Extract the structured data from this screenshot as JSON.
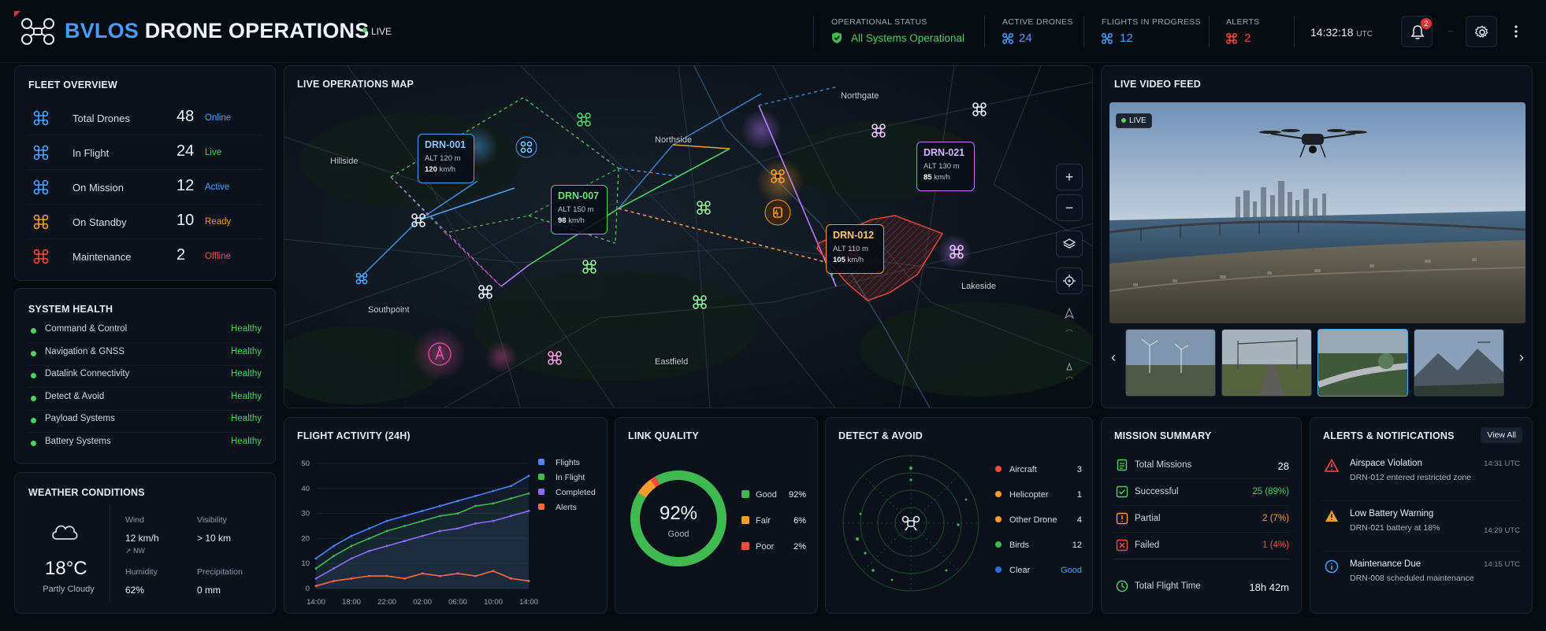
{
  "header": {
    "title_accent": "BVLOS",
    "title_rest": "DRONE OPERATIONS",
    "live_label": "LIVE",
    "op_status_label": "OPERATIONAL STATUS",
    "op_status_value": "All Systems Operational",
    "active_drones_label": "ACTIVE DRONES",
    "active_drones_value": "24",
    "flights_label": "FLIGHTS IN PROGRESS",
    "flights_value": "12",
    "alerts_label": "ALERTS",
    "alerts_value": "2",
    "time": "14:32:18",
    "time_zone": "UTC",
    "notification_count": "2"
  },
  "fleet": {
    "title": "FLEET OVERVIEW",
    "rows": [
      {
        "label": "Total Drones",
        "value": "48",
        "status": "Online",
        "color": "#4aa3ff"
      },
      {
        "label": "In Flight",
        "value": "24",
        "status": "Live",
        "color": "#4fd063"
      },
      {
        "label": "On Mission",
        "value": "12",
        "status": "Active",
        "color": "#4aa3ff"
      },
      {
        "label": "On Standby",
        "value": "10",
        "status": "Ready",
        "color": "#f59d2a"
      },
      {
        "label": "Maintenance",
        "value": "2",
        "status": "Offline",
        "color": "#ff4a3d"
      }
    ]
  },
  "health": {
    "title": "SYSTEM HEALTH",
    "rows": [
      {
        "label": "Command & Control",
        "status": "Healthy"
      },
      {
        "label": "Navigation & GNSS",
        "status": "Healthy"
      },
      {
        "label": "Datalink Connectivity",
        "status": "Healthy"
      },
      {
        "label": "Detect & Avoid",
        "status": "Healthy"
      },
      {
        "label": "Payload Systems",
        "status": "Healthy"
      },
      {
        "label": "Battery Systems",
        "status": "Healthy"
      }
    ]
  },
  "weather": {
    "title": "WEATHER CONDITIONS",
    "temp": "18°C",
    "condition": "Partly Cloudy",
    "wind_label": "Wind",
    "wind_value": "12 km/h",
    "wind_dir": "NW",
    "visibility_label": "Visibility",
    "visibility_value": "> 10 km",
    "humidity_label": "Humidity",
    "humidity_value": "62%",
    "precip_label": "Precipitation",
    "precip_value": "0 mm"
  },
  "map": {
    "title": "LIVE OPERATIONS MAP",
    "places": [
      "Hillside",
      "Northgate",
      "Northside",
      "Southpoint",
      "Eastfield",
      "Lakeside"
    ],
    "cards": [
      {
        "id": "DRN-001",
        "alt": "ALT 120 m",
        "speed": "120",
        "unit": "km/h",
        "color": "#4aa3ff"
      },
      {
        "id": "DRN-007",
        "alt": "ALT 150 m",
        "speed": "98",
        "unit": "km/h",
        "color": "#4fd063"
      },
      {
        "id": "DRN-012",
        "alt": "ALT 110 m",
        "speed": "105",
        "unit": "km/h",
        "color": "#f59d2a"
      },
      {
        "id": "DRN-021",
        "alt": "ALT 130 m",
        "speed": "85",
        "unit": "km/h",
        "color": "#b57bff"
      }
    ],
    "zoom_in": "+",
    "zoom_out": "−"
  },
  "video": {
    "title": "LIVE VIDEO FEED",
    "live_badge": "LIVE"
  },
  "activity": {
    "title": "FLIGHT ACTIVITY (24H)"
  },
  "link": {
    "title": "LINK QUALITY",
    "center_value": "92%",
    "center_label": "Good",
    "rows": [
      {
        "label": "Good",
        "value": "92%",
        "color": "#3fb950"
      },
      {
        "label": "Fair",
        "value": "6%",
        "color": "#f59d2a"
      },
      {
        "label": "Poor",
        "value": "2%",
        "color": "#ff4a3d"
      }
    ]
  },
  "daa": {
    "title": "DETECT & AVOID",
    "rows": [
      {
        "label": "Aircraft",
        "value": "3",
        "color": "#ff4a3d"
      },
      {
        "label": "Helicopter",
        "value": "1",
        "color": "#f59d2a"
      },
      {
        "label": "Other Drone",
        "value": "4",
        "color": "#f59d2a"
      },
      {
        "label": "Birds",
        "value": "12",
        "color": "#3fb950"
      },
      {
        "label": "Clear",
        "value": "Good",
        "color": "#2f6fd6"
      }
    ]
  },
  "mission": {
    "title": "MISSION SUMMARY",
    "rows": [
      {
        "label": "Total Missions",
        "value": "28",
        "color": "#f2f5f9"
      },
      {
        "label": "Successful",
        "value": "25 (89%)",
        "color": "#4fd063"
      },
      {
        "label": "Partial",
        "value": "2 (7%)",
        "color": "#f59d2a"
      },
      {
        "label": "Failed",
        "value": "1 (4%)",
        "color": "#ff4a3d"
      },
      {
        "label": "Total Flight Time",
        "value": "18h 42m",
        "color": "#f2f5f9"
      }
    ]
  },
  "alerts": {
    "title": "ALERTS & NOTIFICATIONS",
    "view_all": "View All",
    "items": [
      {
        "title": "Airspace Violation",
        "desc": "DRN-012 entered restricted zone",
        "time": "14:31 UTC",
        "color": "#ff4a3d"
      },
      {
        "title": "Low Battery Warning",
        "desc": "DRN-021 battery at 18%",
        "time": "14:29 UTC",
        "color": "#f59d2a"
      },
      {
        "title": "Maintenance Due",
        "desc": "DRN-008 scheduled maintenance",
        "time": "14:15 UTC",
        "color": "#4aa3ff"
      }
    ]
  },
  "chart_data": {
    "type": "line",
    "title": "FLIGHT ACTIVITY (24H)",
    "xlabel": "",
    "ylabel": "",
    "x": [
      "14:00",
      "16:00",
      "18:00",
      "20:00",
      "22:00",
      "00:00",
      "02:00",
      "04:00",
      "06:00",
      "08:00",
      "10:00",
      "12:00",
      "14:00"
    ],
    "x_tick_labels": [
      "14:00",
      "18:00",
      "22:00",
      "02:00",
      "06:00",
      "10:00",
      "14:00"
    ],
    "ylim": [
      0,
      50
    ],
    "y_ticks": [
      0,
      10,
      20,
      30,
      40,
      50
    ],
    "series": [
      {
        "name": "Flights",
        "color": "#4a86ff",
        "values": [
          12,
          17,
          21,
          24,
          27,
          29,
          31,
          33,
          35,
          37,
          39,
          41,
          45
        ]
      },
      {
        "name": "In Flight",
        "color": "#3fb950",
        "values": [
          8,
          13,
          17,
          20,
          23,
          25,
          27,
          29,
          30,
          33,
          34,
          36,
          38
        ]
      },
      {
        "name": "Completed",
        "color": "#8f6bff",
        "values": [
          4,
          8,
          12,
          15,
          17,
          19,
          21,
          23,
          24,
          26,
          27,
          29,
          31
        ]
      },
      {
        "name": "Alerts",
        "color": "#ff6a3d",
        "values": [
          1,
          3,
          4,
          5,
          5,
          4,
          6,
          5,
          6,
          5,
          7,
          4,
          3
        ]
      }
    ],
    "legend": "right",
    "grid": true
  }
}
